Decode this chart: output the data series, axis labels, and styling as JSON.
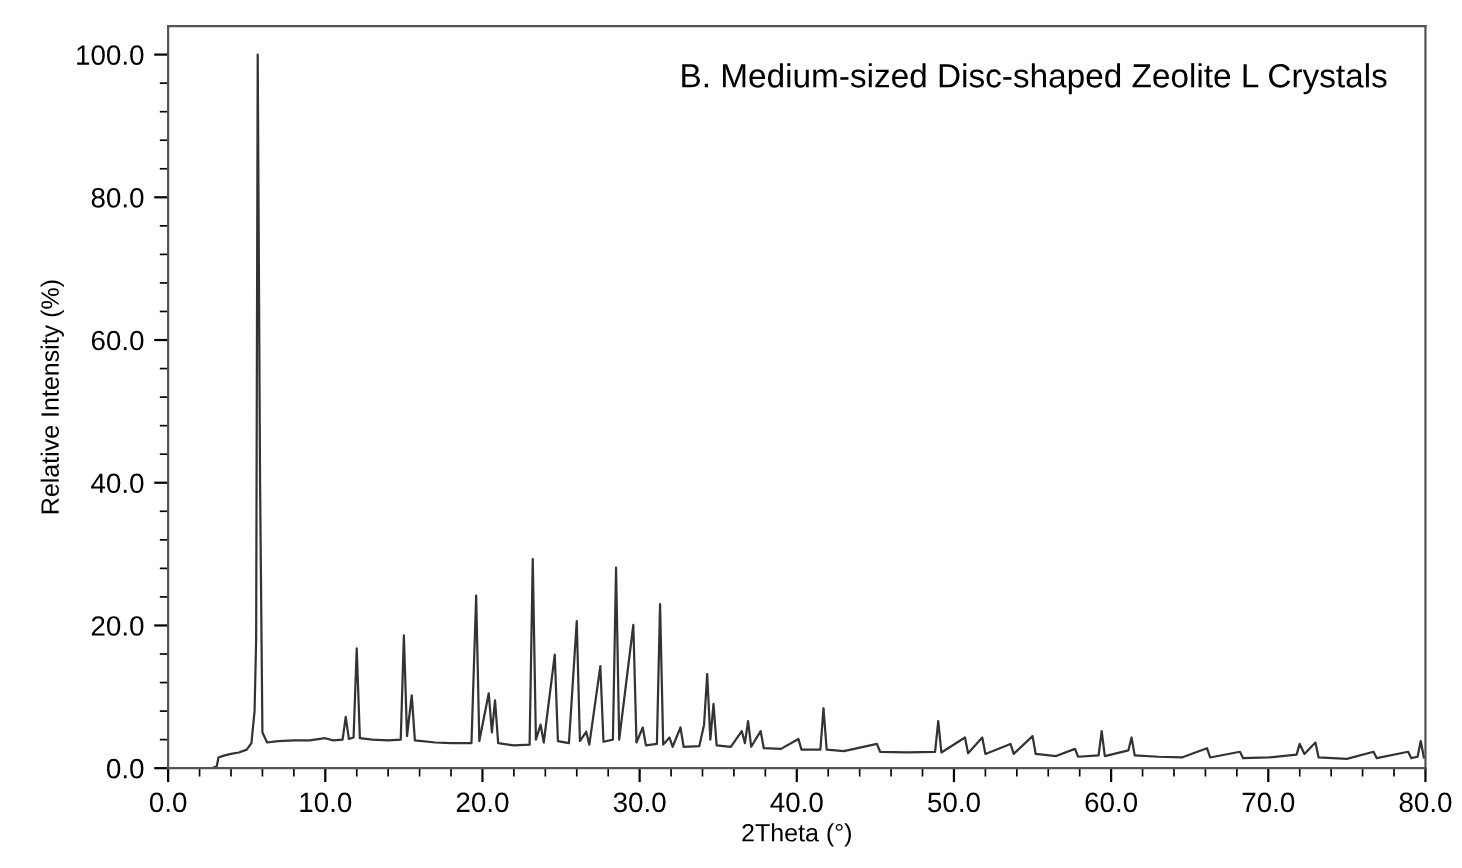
{
  "chart_data": {
    "type": "line",
    "title": "B. Medium-sized Disc-shaped Zeolite L Crystals",
    "xlabel": "2Theta (°)",
    "ylabel": "Relative Intensity (%)",
    "xlim": [
      0,
      80
    ],
    "ylim": [
      0,
      104
    ],
    "xticks": [
      {
        "value": 0,
        "label": "0.0"
      },
      {
        "value": 2,
        "label": null
      },
      {
        "value": 4,
        "label": null
      },
      {
        "value": 6,
        "label": null
      },
      {
        "value": 8,
        "label": null
      },
      {
        "value": 10,
        "label": "10.0"
      },
      {
        "value": 12,
        "label": null
      },
      {
        "value": 14,
        "label": null
      },
      {
        "value": 16,
        "label": null
      },
      {
        "value": 18,
        "label": null
      },
      {
        "value": 20,
        "label": "20.0"
      },
      {
        "value": 22,
        "label": null
      },
      {
        "value": 24,
        "label": null
      },
      {
        "value": 26,
        "label": null
      },
      {
        "value": 28,
        "label": null
      },
      {
        "value": 30,
        "label": "30.0"
      },
      {
        "value": 32,
        "label": null
      },
      {
        "value": 34,
        "label": null
      },
      {
        "value": 36,
        "label": null
      },
      {
        "value": 38,
        "label": null
      },
      {
        "value": 40,
        "label": "40.0"
      },
      {
        "value": 42,
        "label": null
      },
      {
        "value": 44,
        "label": null
      },
      {
        "value": 46,
        "label": null
      },
      {
        "value": 48,
        "label": null
      },
      {
        "value": 50,
        "label": "50.0"
      },
      {
        "value": 52,
        "label": null
      },
      {
        "value": 54,
        "label": null
      },
      {
        "value": 56,
        "label": null
      },
      {
        "value": 58,
        "label": null
      },
      {
        "value": 60,
        "label": "60.0"
      },
      {
        "value": 62,
        "label": null
      },
      {
        "value": 64,
        "label": null
      },
      {
        "value": 66,
        "label": null
      },
      {
        "value": 68,
        "label": null
      },
      {
        "value": 70,
        "label": "70.0"
      },
      {
        "value": 72,
        "label": null
      },
      {
        "value": 74,
        "label": null
      },
      {
        "value": 76,
        "label": null
      },
      {
        "value": 78,
        "label": null
      },
      {
        "value": 80,
        "label": "80.0"
      }
    ],
    "yticks": [
      {
        "value": 0,
        "label": "0.0"
      },
      {
        "value": 4,
        "label": null
      },
      {
        "value": 8,
        "label": null
      },
      {
        "value": 12,
        "label": null
      },
      {
        "value": 16,
        "label": null
      },
      {
        "value": 20,
        "label": "20.0"
      },
      {
        "value": 24,
        "label": null
      },
      {
        "value": 28,
        "label": null
      },
      {
        "value": 32,
        "label": null
      },
      {
        "value": 36,
        "label": null
      },
      {
        "value": 40,
        "label": "40.0"
      },
      {
        "value": 44,
        "label": null
      },
      {
        "value": 48,
        "label": null
      },
      {
        "value": 52,
        "label": null
      },
      {
        "value": 56,
        "label": null
      },
      {
        "value": 60,
        "label": "60.0"
      },
      {
        "value": 64,
        "label": null
      },
      {
        "value": 68,
        "label": null
      },
      {
        "value": 72,
        "label": null
      },
      {
        "value": 76,
        "label": null
      },
      {
        "value": 80,
        "label": "80.0"
      },
      {
        "value": 84,
        "label": null
      },
      {
        "value": 88,
        "label": null
      },
      {
        "value": 92,
        "label": null
      },
      {
        "value": 96,
        "label": null
      },
      {
        "value": 100,
        "label": "100.0"
      }
    ],
    "grid": false,
    "legend": false,
    "series": [
      {
        "color": "#333333",
        "x": [
          2.8,
          3.1,
          3.2,
          3.6,
          4.0,
          4.5,
          5.0,
          5.3,
          5.5,
          5.6,
          5.7,
          5.85,
          6.0,
          6.3,
          7,
          8,
          9,
          10,
          10.5,
          11.1,
          11.3,
          11.5,
          11.8,
          12.0,
          12.2,
          13,
          14,
          14.8,
          15.0,
          15.2,
          15.5,
          15.7,
          17,
          18,
          19.3,
          19.6,
          19.8,
          20.4,
          20.6,
          20.8,
          21.0,
          22,
          23.0,
          23.2,
          23.4,
          23.7,
          23.9,
          24.6,
          24.8,
          25.5,
          26.0,
          26.2,
          26.6,
          26.8,
          27.5,
          27.7,
          28.3,
          28.5,
          28.7,
          29.6,
          29.8,
          30.2,
          30.4,
          31.1,
          31.3,
          31.5,
          31.9,
          32.1,
          32.6,
          32.8,
          33.8,
          34.1,
          34.3,
          34.5,
          34.7,
          34.9,
          35.8,
          36.5,
          36.7,
          36.9,
          37.1,
          37.7,
          37.9,
          39,
          40.1,
          40.3,
          41.5,
          41.7,
          41.9,
          43,
          45.1,
          45.3,
          47,
          48.8,
          49.0,
          49.2,
          50.7,
          50.9,
          51.8,
          52.0,
          53.6,
          53.8,
          55.0,
          55.2,
          56.5,
          57.7,
          57.9,
          59.2,
          59.4,
          59.6,
          61.1,
          61.3,
          61.5,
          63,
          64.5,
          66.1,
          66.3,
          68.2,
          68.4,
          70,
          71.8,
          72.0,
          72.3,
          73.0,
          73.2,
          75,
          76.7,
          76.9,
          78.9,
          79.1,
          79.5,
          79.7,
          79.9
        ],
        "values": [
          0,
          0.3,
          1.5,
          1.8,
          2.0,
          2.2,
          2.6,
          3.5,
          8,
          18,
          100,
          40,
          5,
          3.6,
          3.8,
          3.9,
          3.9,
          4.2,
          3.9,
          4.0,
          7.2,
          4.1,
          4.3,
          16.8,
          4.2,
          4.0,
          3.9,
          4.0,
          18.6,
          4.5,
          10.2,
          3.9,
          3.6,
          3.5,
          3.5,
          24.2,
          3.8,
          10.5,
          5,
          9.5,
          3.5,
          3.2,
          3.3,
          29.3,
          4.0,
          6.1,
          3.6,
          15.9,
          3.8,
          3.5,
          20.6,
          3.8,
          5.1,
          3.3,
          14.3,
          3.7,
          4,
          28.1,
          4.0,
          20.1,
          3.6,
          5.7,
          3.2,
          3.4,
          23.0,
          3.3,
          4.3,
          3.0,
          5.7,
          3.0,
          3.1,
          6.1,
          13.2,
          4,
          9.0,
          3.2,
          3.0,
          5.2,
          3.5,
          6.6,
          3.0,
          5.2,
          2.8,
          2.7,
          4.1,
          2.6,
          2.6,
          8.4,
          2.6,
          2.4,
          3.4,
          2.3,
          2.2,
          2.3,
          6.6,
          2.2,
          4.3,
          2.1,
          4.3,
          2.0,
          3.4,
          2.0,
          4.5,
          2.0,
          1.7,
          2.7,
          1.6,
          1.8,
          5.2,
          1.7,
          2.5,
          4.3,
          1.8,
          1.6,
          1.5,
          2.8,
          1.5,
          2.3,
          1.4,
          1.5,
          1.9,
          3.4,
          2.0,
          3.6,
          1.5,
          1.3,
          2.3,
          1.4,
          2.3,
          1.4,
          1.6,
          3.8,
          1.5
        ]
      }
    ]
  }
}
